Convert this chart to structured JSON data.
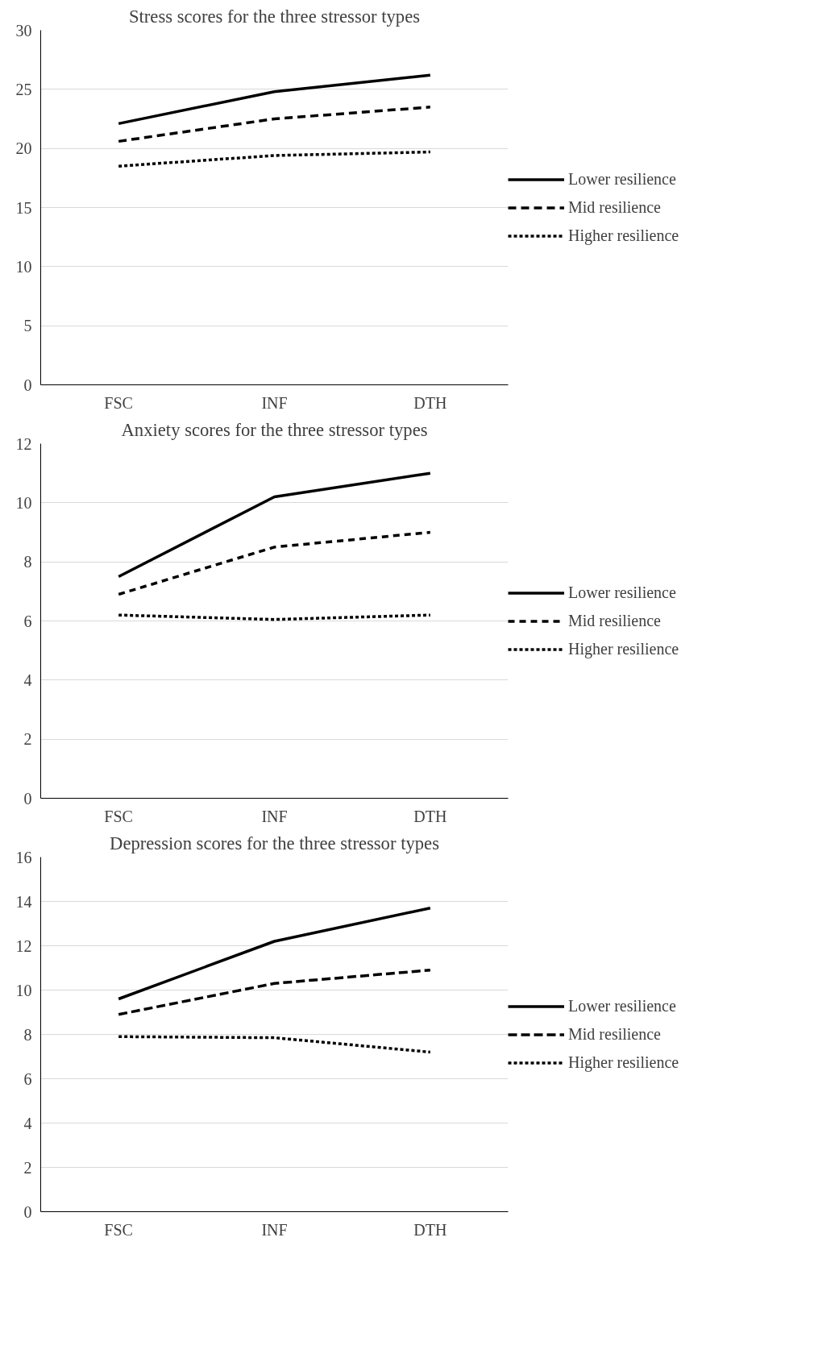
{
  "chart_data": [
    {
      "type": "line",
      "title": "Stress scores for the three stressor types",
      "categories": [
        "FSC",
        "INF",
        "DTH"
      ],
      "ylim": [
        0,
        30
      ],
      "yticks": [
        0,
        5,
        10,
        15,
        20,
        25,
        30
      ],
      "grid": "y",
      "legend": "right",
      "series": [
        {
          "name": "Lower resilience",
          "color": "#000000",
          "line_style": "solid",
          "values": [
            22.1,
            24.8,
            26.2
          ]
        },
        {
          "name": "Mid resilience",
          "color": "#000000",
          "line_style": "dashed",
          "values": [
            20.6,
            22.5,
            23.5
          ]
        },
        {
          "name": "Higher resilience",
          "color": "#000000",
          "line_style": "dotted",
          "values": [
            18.5,
            19.4,
            19.7
          ]
        }
      ]
    },
    {
      "type": "line",
      "title": "Anxiety scores for the three stressor types",
      "categories": [
        "FSC",
        "INF",
        "DTH"
      ],
      "ylim": [
        0,
        12
      ],
      "yticks": [
        0,
        2,
        4,
        6,
        8,
        10,
        12
      ],
      "grid": "y",
      "legend": "right",
      "series": [
        {
          "name": "Lower resilience",
          "color": "#000000",
          "line_style": "solid",
          "values": [
            7.5,
            10.2,
            11.0
          ]
        },
        {
          "name": "Mid resilience",
          "color": "#000000",
          "line_style": "dashed",
          "values": [
            6.9,
            8.5,
            9.0
          ]
        },
        {
          "name": "Higher resilience",
          "color": "#000000",
          "line_style": "dotted",
          "values": [
            6.2,
            6.05,
            6.2
          ]
        }
      ]
    },
    {
      "type": "line",
      "title": "Depression scores for the three stressor types",
      "categories": [
        "FSC",
        "INF",
        "DTH"
      ],
      "ylim": [
        0,
        16
      ],
      "yticks": [
        0,
        2,
        4,
        6,
        8,
        10,
        12,
        14,
        16
      ],
      "grid": "y",
      "legend": "right",
      "series": [
        {
          "name": "Lower resilience",
          "color": "#000000",
          "line_style": "solid",
          "values": [
            9.6,
            12.2,
            13.7
          ]
        },
        {
          "name": "Mid resilience",
          "color": "#000000",
          "line_style": "dashed",
          "values": [
            8.9,
            10.3,
            10.9
          ]
        },
        {
          "name": "Higher resilience",
          "color": "#000000",
          "line_style": "dotted",
          "values": [
            7.9,
            7.85,
            7.2
          ]
        }
      ]
    }
  ]
}
